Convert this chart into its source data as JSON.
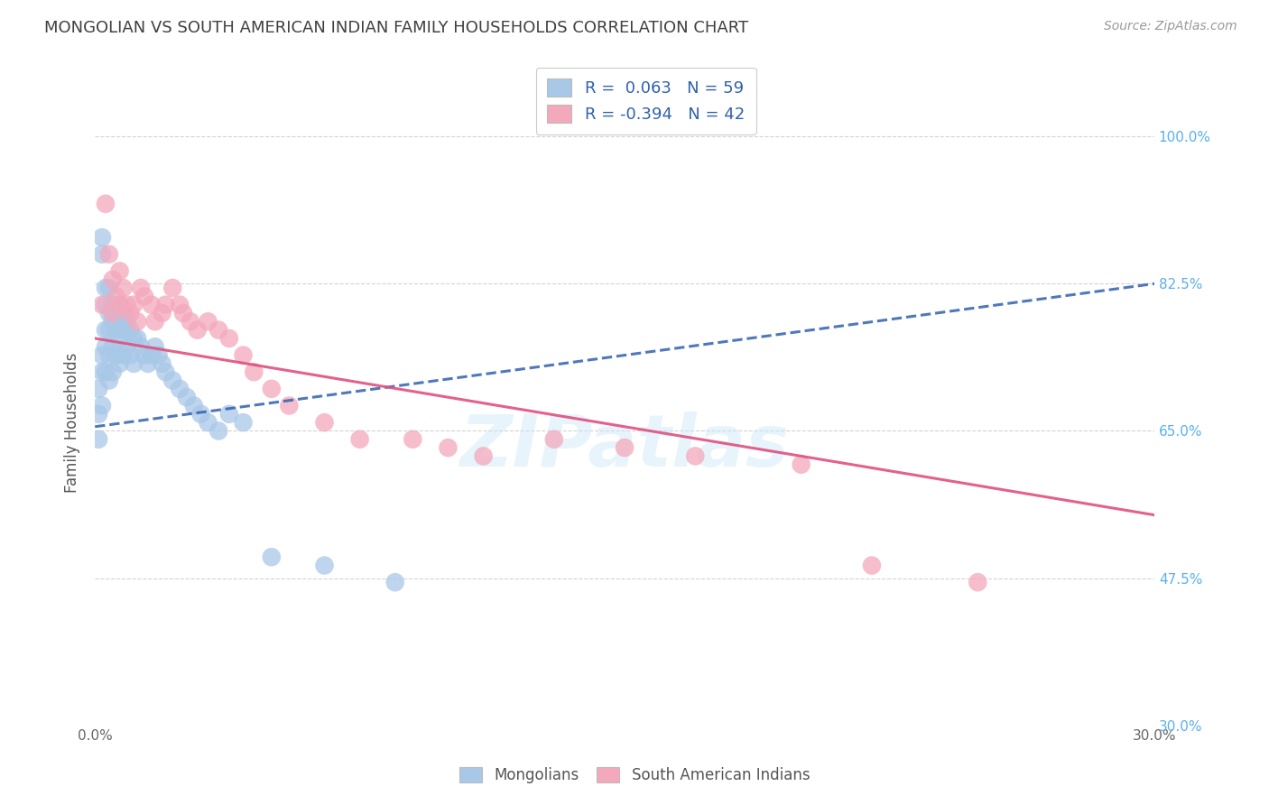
{
  "title": "MONGOLIAN VS SOUTH AMERICAN INDIAN FAMILY HOUSEHOLDS CORRELATION CHART",
  "source": "Source: ZipAtlas.com",
  "ylabel": "Family Households",
  "watermark": "ZIPatlas",
  "xmin": 0.0,
  "xmax": 0.3,
  "ymin": 0.3,
  "ymax": 1.02,
  "yticks": [
    0.3,
    0.475,
    0.65,
    0.825,
    1.0
  ],
  "ytick_labels": [
    "30.0%",
    "47.5%",
    "65.0%",
    "82.5%",
    "100.0%"
  ],
  "xticks": [
    0.0,
    0.025,
    0.05,
    0.075,
    0.1,
    0.125,
    0.15,
    0.175,
    0.2,
    0.225,
    0.25,
    0.275,
    0.3
  ],
  "xtick_labels": [
    "0.0%",
    "",
    "",
    "",
    "",
    "",
    "",
    "",
    "",
    "",
    "",
    "",
    "30.0%"
  ],
  "mongolian_R": 0.063,
  "mongolian_N": 59,
  "south_american_R": -0.394,
  "south_american_N": 42,
  "mongolian_color": "#a8c8e8",
  "south_american_color": "#f4a8bc",
  "mongolian_line_color": "#3060b0",
  "south_american_line_color": "#e05080",
  "background_color": "#ffffff",
  "grid_color": "#c8c8c8",
  "title_color": "#404040",
  "right_tick_color": "#5ab0f0",
  "mongo_x": [
    0.001,
    0.001,
    0.001,
    0.002,
    0.002,
    0.002,
    0.002,
    0.002,
    0.003,
    0.003,
    0.003,
    0.003,
    0.003,
    0.004,
    0.004,
    0.004,
    0.004,
    0.004,
    0.005,
    0.005,
    0.005,
    0.005,
    0.006,
    0.006,
    0.006,
    0.007,
    0.007,
    0.007,
    0.007,
    0.008,
    0.008,
    0.008,
    0.009,
    0.009,
    0.01,
    0.01,
    0.011,
    0.011,
    0.012,
    0.013,
    0.014,
    0.015,
    0.016,
    0.017,
    0.018,
    0.019,
    0.02,
    0.022,
    0.024,
    0.026,
    0.028,
    0.03,
    0.032,
    0.035,
    0.038,
    0.042,
    0.05,
    0.065,
    0.085
  ],
  "mongo_y": [
    0.7,
    0.67,
    0.64,
    0.88,
    0.86,
    0.74,
    0.72,
    0.68,
    0.82,
    0.8,
    0.77,
    0.75,
    0.72,
    0.82,
    0.79,
    0.77,
    0.74,
    0.71,
    0.8,
    0.78,
    0.75,
    0.72,
    0.79,
    0.77,
    0.74,
    0.8,
    0.78,
    0.76,
    0.73,
    0.79,
    0.77,
    0.74,
    0.78,
    0.75,
    0.77,
    0.74,
    0.76,
    0.73,
    0.76,
    0.75,
    0.74,
    0.73,
    0.74,
    0.75,
    0.74,
    0.73,
    0.72,
    0.71,
    0.7,
    0.69,
    0.68,
    0.67,
    0.66,
    0.65,
    0.67,
    0.66,
    0.5,
    0.49,
    0.47
  ],
  "south_x": [
    0.002,
    0.003,
    0.004,
    0.005,
    0.005,
    0.006,
    0.007,
    0.007,
    0.008,
    0.009,
    0.01,
    0.011,
    0.012,
    0.013,
    0.014,
    0.016,
    0.017,
    0.019,
    0.02,
    0.022,
    0.024,
    0.025,
    0.027,
    0.029,
    0.032,
    0.035,
    0.038,
    0.042,
    0.045,
    0.05,
    0.055,
    0.065,
    0.075,
    0.09,
    0.1,
    0.11,
    0.13,
    0.15,
    0.17,
    0.2,
    0.22,
    0.25
  ],
  "south_y": [
    0.8,
    0.92,
    0.86,
    0.83,
    0.79,
    0.81,
    0.84,
    0.8,
    0.82,
    0.8,
    0.79,
    0.8,
    0.78,
    0.82,
    0.81,
    0.8,
    0.78,
    0.79,
    0.8,
    0.82,
    0.8,
    0.79,
    0.78,
    0.77,
    0.78,
    0.77,
    0.76,
    0.74,
    0.72,
    0.7,
    0.68,
    0.66,
    0.64,
    0.64,
    0.63,
    0.62,
    0.64,
    0.63,
    0.62,
    0.61,
    0.49,
    0.47
  ],
  "mongo_trend_x0": 0.0,
  "mongo_trend_x1": 0.3,
  "mongo_trend_y0": 0.655,
  "mongo_trend_y1": 0.825,
  "south_trend_x0": 0.0,
  "south_trend_x1": 0.3,
  "south_trend_y0": 0.76,
  "south_trend_y1": 0.55
}
